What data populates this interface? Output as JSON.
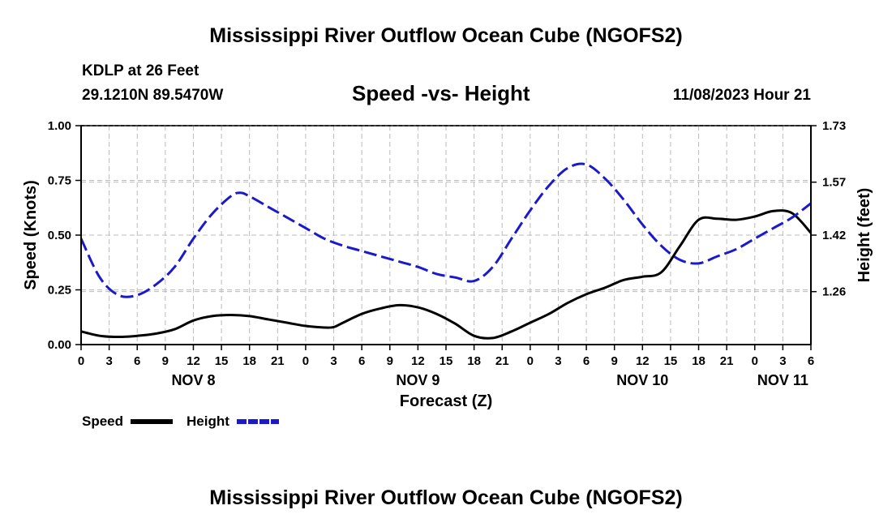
{
  "header": {
    "title": "Mississippi River Outflow Ocean Cube (NGOFS2)",
    "station": "KDLP at 26 Feet",
    "coords": "29.1210N  89.5470W",
    "chart_title": "Speed -vs- Height",
    "datetime": "11/08/2023 Hour 21"
  },
  "legend": {
    "speed_label": "Speed",
    "height_label": "Height"
  },
  "footer": {
    "title": "Mississippi River Outflow Ocean Cube (NGOFS2)"
  },
  "colors": {
    "speed": "#000000",
    "height": "#1a1acc",
    "grid": "#bbbbbb"
  },
  "chart_data": {
    "type": "line",
    "title": "Speed -vs- Height",
    "xlabel": "Forecast (Z)",
    "ylabel": "Speed (Knots)",
    "y2label": "Height (feet)",
    "xlim": [
      0,
      78
    ],
    "ylim": [
      0,
      1.0
    ],
    "y2lim": [
      1.11,
      1.73
    ],
    "x_ticks": [
      0,
      3,
      6,
      9,
      12,
      15,
      18,
      21,
      24,
      27,
      30,
      33,
      36,
      39,
      42,
      45,
      48,
      51,
      54,
      57,
      60,
      63,
      66,
      69,
      72,
      75,
      78
    ],
    "x_tick_labels": [
      "0",
      "3",
      "6",
      "9",
      "12",
      "15",
      "18",
      "21",
      "0",
      "3",
      "6",
      "9",
      "12",
      "15",
      "18",
      "21",
      "0",
      "3",
      "6",
      "9",
      "12",
      "15",
      "18",
      "21",
      "0",
      "3",
      "6"
    ],
    "day_labels": [
      {
        "x": 12,
        "label": "NOV 8"
      },
      {
        "x": 36,
        "label": "NOV 9"
      },
      {
        "x": 60,
        "label": "NOV 10"
      },
      {
        "x": 75,
        "label": "NOV 11"
      }
    ],
    "y_ticks": [
      0.0,
      0.25,
      0.5,
      0.75,
      1.0
    ],
    "y_tick_labels": [
      "0.00",
      "0.25",
      "0.50",
      "0.75",
      "1.00"
    ],
    "y2_ticks": [
      1.26,
      1.42,
      1.57,
      1.73
    ],
    "y2_tick_labels": [
      "1.26",
      "1.42",
      "1.57",
      "1.73"
    ],
    "series": [
      {
        "name": "Speed",
        "axis": "left",
        "style": "solid",
        "x": [
          0,
          2,
          4,
          6,
          8,
          10,
          12,
          14,
          16,
          18,
          20,
          22,
          24,
          26,
          27,
          28,
          30,
          32,
          34,
          36,
          38,
          40,
          42,
          44,
          46,
          48,
          50,
          52,
          54,
          56,
          58,
          60,
          62,
          64,
          66,
          68,
          70,
          72,
          74,
          76,
          78
        ],
        "values": [
          0.06,
          0.04,
          0.035,
          0.04,
          0.05,
          0.07,
          0.11,
          0.13,
          0.135,
          0.13,
          0.115,
          0.1,
          0.085,
          0.078,
          0.08,
          0.1,
          0.14,
          0.165,
          0.18,
          0.17,
          0.14,
          0.095,
          0.04,
          0.03,
          0.06,
          0.1,
          0.14,
          0.19,
          0.23,
          0.26,
          0.295,
          0.31,
          0.33,
          0.45,
          0.57,
          0.575,
          0.57,
          0.585,
          0.61,
          0.6,
          0.51
        ]
      },
      {
        "name": "Height",
        "axis": "right",
        "style": "dashed",
        "x": [
          0,
          2,
          4,
          6,
          8,
          10,
          12,
          14,
          16,
          17,
          18,
          20,
          22,
          24,
          26,
          28,
          30,
          32,
          34,
          36,
          38,
          40,
          42,
          44,
          46,
          48,
          50,
          52,
          54,
          56,
          58,
          60,
          62,
          64,
          66,
          68,
          70,
          72,
          74,
          76,
          78
        ],
        "values": [
          1.41,
          1.3,
          1.25,
          1.25,
          1.28,
          1.33,
          1.41,
          1.48,
          1.53,
          1.54,
          1.53,
          1.5,
          1.47,
          1.44,
          1.41,
          1.39,
          1.375,
          1.36,
          1.345,
          1.33,
          1.31,
          1.3,
          1.29,
          1.33,
          1.41,
          1.49,
          1.56,
          1.61,
          1.62,
          1.58,
          1.52,
          1.45,
          1.39,
          1.35,
          1.34,
          1.36,
          1.38,
          1.41,
          1.44,
          1.47,
          1.51
        ]
      }
    ]
  }
}
